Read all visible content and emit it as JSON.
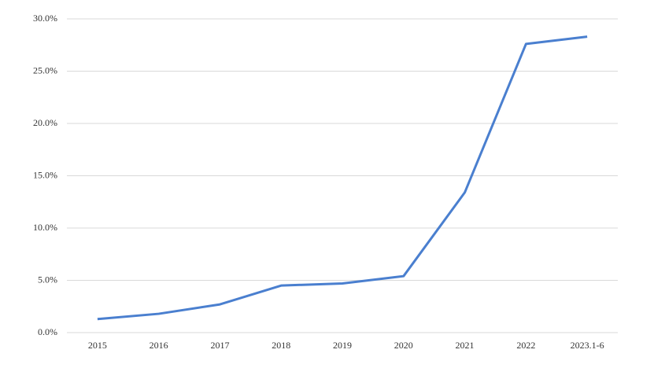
{
  "chart_data": {
    "type": "line",
    "categories": [
      "2015",
      "2016",
      "2017",
      "2018",
      "2019",
      "2020",
      "2021",
      "2022",
      "2023.1-6"
    ],
    "series": [
      {
        "color": "#4a7fcf",
        "values": [
          1.3,
          1.8,
          2.7,
          4.5,
          4.7,
          5.4,
          13.4,
          27.6,
          28.3
        ]
      }
    ],
    "ylim": [
      0,
      30
    ],
    "yticks": [
      {
        "value": 0,
        "label": "0.0%"
      },
      {
        "value": 5,
        "label": "5.0%"
      },
      {
        "value": 10,
        "label": "10.0%"
      },
      {
        "value": 15,
        "label": "15.0%"
      },
      {
        "value": 20,
        "label": "20.0%"
      },
      {
        "value": 25,
        "label": "25.0%"
      },
      {
        "value": 30,
        "label": "30.0%"
      }
    ],
    "grid": true
  }
}
